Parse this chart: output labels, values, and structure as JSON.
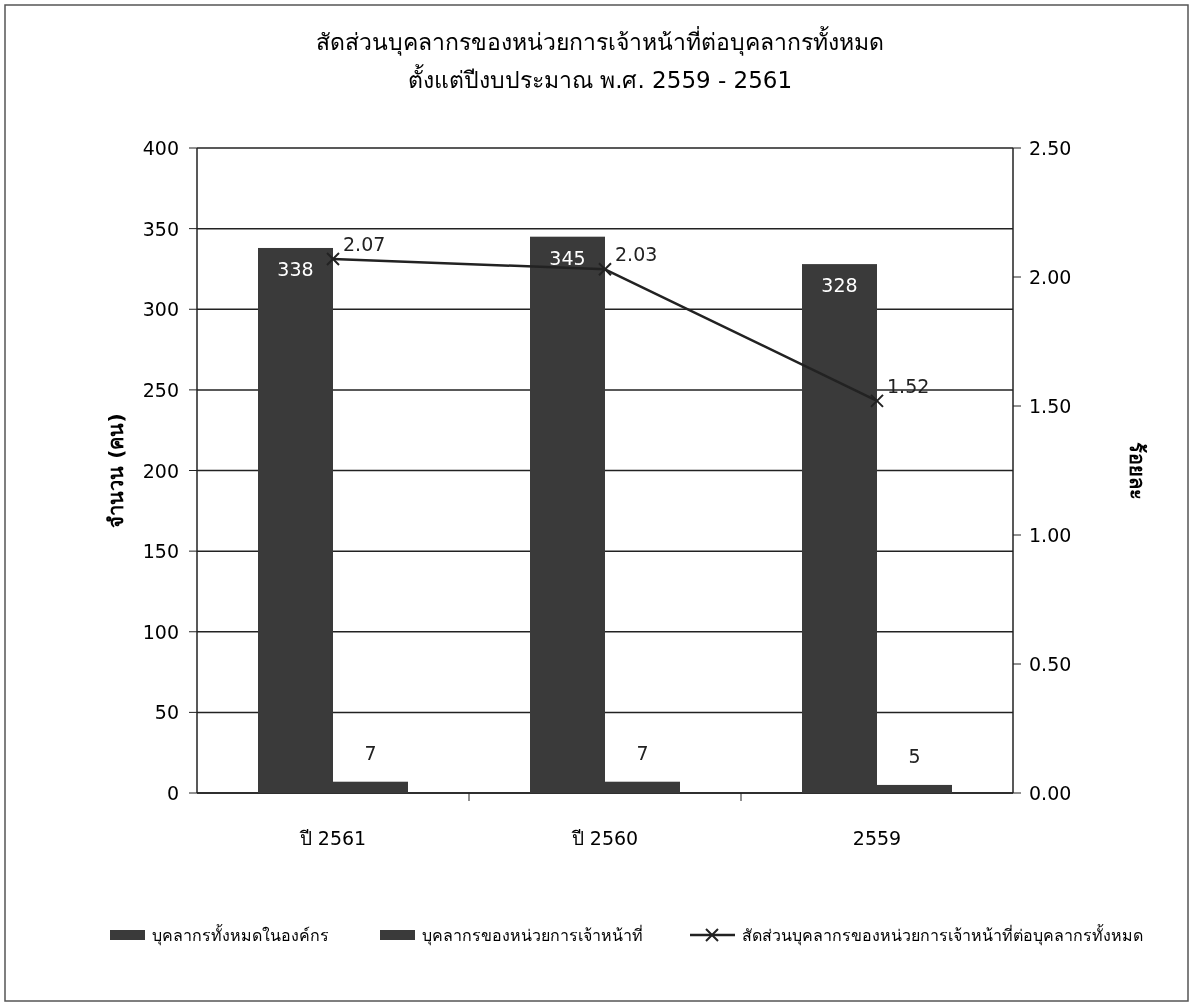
{
  "chart_data": {
    "type": "bar",
    "title": "สัดส่วนบุคลากรของหน่วยการเจ้าหน้าที่ต่อบุคลากรทั้งหมด",
    "subtitle": "ตั้งแต่ปีงบประมาณ พ.ศ. 2559 - 2561",
    "ylabel": "จำนวน (คน)",
    "y2label": "ร้อยละ",
    "categories": [
      "ปี  2561",
      "ปี  2560",
      "2559"
    ],
    "series": [
      {
        "name": "บุคลากรทั้งหมดในองค์กร",
        "color": "#3a3a3a",
        "values": [
          338,
          345,
          328
        ]
      },
      {
        "name": "บุคลากรของหน่วยการเจ้าหน้าที่",
        "color": "#3a3a3a",
        "values": [
          7,
          7,
          5
        ]
      },
      {
        "name": "สัดส่วนบุคลากรของหน่วยการเจ้าหน้าที่ต่อบุคลากรทั้งหมด",
        "type": "line",
        "axis": "y2",
        "color": "#222222",
        "marker": "cross",
        "values": [
          2.07,
          2.03,
          1.52
        ]
      }
    ],
    "ylim": [
      0,
      400
    ],
    "yticks": [
      0,
      50,
      100,
      150,
      200,
      250,
      300,
      350,
      400
    ],
    "y2lim": [
      0,
      2.5
    ],
    "y2ticks": [
      {
        "value": 0,
        "label": "0.00"
      },
      {
        "value": 0.5,
        "label": "0.50"
      },
      {
        "value": 1,
        "label": "1.00"
      },
      {
        "value": 1.5,
        "label": "1.50"
      },
      {
        "value": 2,
        "label": "2.00"
      },
      {
        "value": 2.5,
        "label": "2.50"
      }
    ],
    "grid": "y",
    "legend": "bottom",
    "data_labels": true
  }
}
